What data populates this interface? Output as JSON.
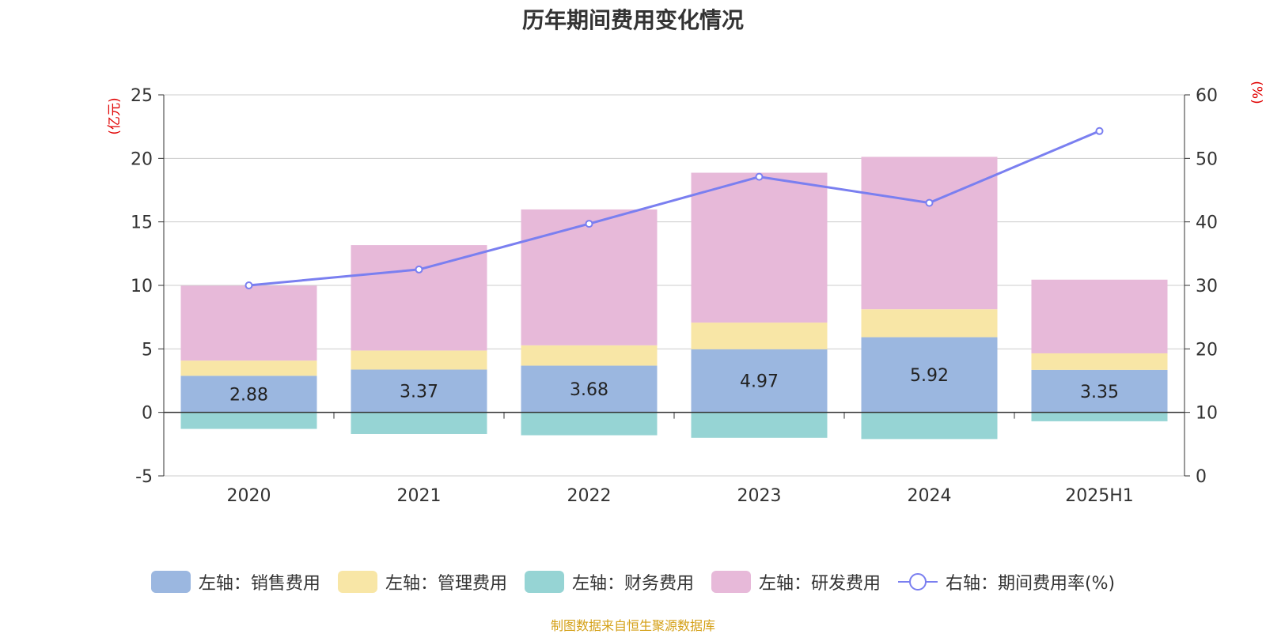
{
  "title": "历年期间费用变化情况",
  "source_note": "制图数据来自恒生聚源数据库",
  "left_axis_unit": "(亿元)",
  "right_axis_unit": "(%)",
  "colors": {
    "sales": "#9bb7e0",
    "admin": "#f8e6a6",
    "finance": "#96d4d4",
    "rnd": "#e7b9d9",
    "rate_line": "#7a7ff0"
  },
  "legend": [
    {
      "key": "sales",
      "label": "左轴：销售费用"
    },
    {
      "key": "admin",
      "label": "左轴：管理费用"
    },
    {
      "key": "finance",
      "label": "左轴：财务费用"
    },
    {
      "key": "rnd",
      "label": "左轴：研发费用"
    },
    {
      "key": "rate_line",
      "label": "右轴：期间费用率(%)"
    }
  ],
  "chart_data": {
    "type": "bar",
    "stacked": true,
    "categories": [
      "2020",
      "2021",
      "2022",
      "2023",
      "2024",
      "2025H1"
    ],
    "series": [
      {
        "name": "左轴：销售费用",
        "axis": "left",
        "values": [
          2.88,
          3.37,
          3.68,
          4.97,
          5.92,
          3.35
        ],
        "labels_shown": true
      },
      {
        "name": "左轴：管理费用",
        "axis": "left",
        "values": [
          1.2,
          1.5,
          1.6,
          2.1,
          2.2,
          1.3
        ]
      },
      {
        "name": "左轴：财务费用",
        "axis": "left",
        "values": [
          -1.3,
          -1.7,
          -1.8,
          -2.0,
          -2.1,
          -0.7
        ]
      },
      {
        "name": "左轴：研发费用",
        "axis": "left",
        "values": [
          5.9,
          8.3,
          10.7,
          11.8,
          12.0,
          5.8
        ]
      },
      {
        "name": "右轴：期间费用率(%)",
        "axis": "right",
        "type": "line",
        "values": [
          30.0,
          32.5,
          39.7,
          47.1,
          43.0,
          54.3
        ]
      }
    ],
    "left_axis": {
      "min": -5,
      "max": 25,
      "ticks": [
        -5,
        0,
        5,
        10,
        15,
        20,
        25
      ]
    },
    "right_axis": {
      "min": 0,
      "max": 60,
      "ticks": [
        0,
        10,
        20,
        30,
        40,
        50,
        60
      ]
    },
    "grid": true,
    "legend_position": "bottom"
  }
}
